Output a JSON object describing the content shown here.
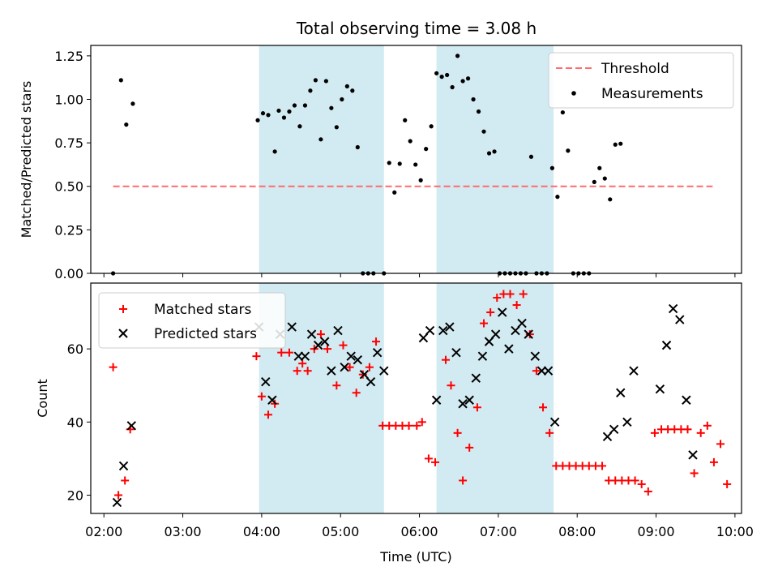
{
  "figure": {
    "title": "Total observing time = 3.08 h"
  },
  "chart_data": [
    {
      "type": "scatter",
      "panel": "top",
      "title": "Total observing time = 3.08 h",
      "ylabel": "Matched/Predicted stars",
      "xlabel": "",
      "xlim": [
        "01:50",
        "10:05"
      ],
      "ylim": [
        0,
        1.31
      ],
      "yticks": [
        "0.00",
        "0.25",
        "0.50",
        "0.75",
        "1.00",
        "1.25"
      ],
      "grid": false,
      "legend": "top-right",
      "shaded_intervals": [
        [
          "03:58",
          "05:33"
        ],
        [
          "06:13",
          "07:42"
        ]
      ],
      "shade_color": "#add8e6",
      "series": [
        {
          "name": "Threshold",
          "kind": "dashed-line",
          "color": "#ff6b6b",
          "y": 0.5,
          "x_range": [
            "02:07",
            "09:43"
          ]
        },
        {
          "name": "Measurements",
          "kind": "points",
          "color": "#000000",
          "points": [
            [
              "02:07",
              0.0
            ],
            [
              "02:13",
              1.11
            ],
            [
              "02:17",
              0.855
            ],
            [
              "02:22",
              0.975
            ],
            [
              "03:57",
              0.88
            ],
            [
              "04:01",
              0.92
            ],
            [
              "04:05",
              0.91
            ],
            [
              "04:10",
              0.7
            ],
            [
              "04:13",
              0.935
            ],
            [
              "04:17",
              0.895
            ],
            [
              "04:21",
              0.93
            ],
            [
              "04:25",
              0.965
            ],
            [
              "04:29",
              0.845
            ],
            [
              "04:33",
              0.965
            ],
            [
              "04:37",
              1.05
            ],
            [
              "04:41",
              1.11
            ],
            [
              "04:45",
              0.77
            ],
            [
              "04:49",
              1.105
            ],
            [
              "04:53",
              0.95
            ],
            [
              "04:57",
              0.84
            ],
            [
              "05:01",
              1.0
            ],
            [
              "05:05",
              1.075
            ],
            [
              "05:09",
              1.05
            ],
            [
              "05:13",
              0.725
            ],
            [
              "05:17",
              0.0
            ],
            [
              "05:21",
              0.0
            ],
            [
              "05:25",
              0.0
            ],
            [
              "05:33",
              0.0
            ],
            [
              "05:37",
              0.635
            ],
            [
              "05:41",
              0.465
            ],
            [
              "05:45",
              0.63
            ],
            [
              "05:49",
              0.88
            ],
            [
              "05:53",
              0.76
            ],
            [
              "05:57",
              0.625
            ],
            [
              "06:01",
              0.535
            ],
            [
              "06:05",
              0.715
            ],
            [
              "06:09",
              0.845
            ],
            [
              "06:13",
              1.15
            ],
            [
              "06:17",
              1.13
            ],
            [
              "06:21",
              1.14
            ],
            [
              "06:25",
              1.07
            ],
            [
              "06:29",
              1.25
            ],
            [
              "06:33",
              1.105
            ],
            [
              "06:37",
              1.12
            ],
            [
              "06:41",
              1.0
            ],
            [
              "06:45",
              0.93
            ],
            [
              "06:49",
              0.815
            ],
            [
              "06:53",
              0.69
            ],
            [
              "06:57",
              0.7
            ],
            [
              "07:01",
              0.0
            ],
            [
              "07:05",
              0.0
            ],
            [
              "07:09",
              0.0
            ],
            [
              "07:13",
              0.0
            ],
            [
              "07:17",
              0.0
            ],
            [
              "07:21",
              0.0
            ],
            [
              "07:25",
              0.67
            ],
            [
              "07:29",
              0.0
            ],
            [
              "07:33",
              0.0
            ],
            [
              "07:37",
              0.0
            ],
            [
              "07:41",
              0.605
            ],
            [
              "07:45",
              0.44
            ],
            [
              "07:49",
              0.925
            ],
            [
              "07:53",
              0.705
            ],
            [
              "07:57",
              0.0
            ],
            [
              "08:01",
              0.0
            ],
            [
              "08:05",
              0.0
            ],
            [
              "08:09",
              0.0
            ],
            [
              "08:13",
              0.525
            ],
            [
              "08:17",
              0.605
            ],
            [
              "08:21",
              0.545
            ],
            [
              "08:25",
              0.425
            ],
            [
              "08:29",
              0.74
            ],
            [
              "08:33",
              0.745
            ]
          ]
        }
      ]
    },
    {
      "type": "scatter",
      "panel": "bottom",
      "ylabel": "Count",
      "xlabel": "Time (UTC)",
      "xlim": [
        "01:50",
        "10:05"
      ],
      "ylim": [
        15,
        78
      ],
      "yticks": [
        "20",
        "40",
        "60"
      ],
      "xticks": [
        "02:00",
        "03:00",
        "04:00",
        "05:00",
        "06:00",
        "07:00",
        "08:00",
        "09:00",
        "10:00"
      ],
      "grid": false,
      "legend": "top-left",
      "shaded_intervals": [
        [
          "03:58",
          "05:33"
        ],
        [
          "06:13",
          "07:42"
        ]
      ],
      "shade_color": "#add8e6",
      "series": [
        {
          "name": "Matched stars",
          "marker": "plus",
          "color": "#ff0000",
          "points": [
            [
              "02:07",
              55
            ],
            [
              "02:11",
              20
            ],
            [
              "02:16",
              24
            ],
            [
              "02:20",
              38
            ],
            [
              "03:56",
              58
            ],
            [
              "04:00",
              47
            ],
            [
              "04:05",
              42
            ],
            [
              "04:10",
              45
            ],
            [
              "04:15",
              59
            ],
            [
              "04:21",
              59
            ],
            [
              "04:27",
              54
            ],
            [
              "04:31",
              56
            ],
            [
              "04:35",
              54
            ],
            [
              "04:40",
              60
            ],
            [
              "04:45",
              64
            ],
            [
              "04:50",
              60
            ],
            [
              "04:57",
              50
            ],
            [
              "05:02",
              61
            ],
            [
              "05:07",
              55
            ],
            [
              "05:12",
              48
            ],
            [
              "05:17",
              53
            ],
            [
              "05:22",
              55
            ],
            [
              "05:27",
              62
            ],
            [
              "05:32",
              39
            ],
            [
              "05:37",
              39
            ],
            [
              "05:42",
              39
            ],
            [
              "05:47",
              39
            ],
            [
              "05:52",
              39
            ],
            [
              "05:58",
              39
            ],
            [
              "06:02",
              40
            ],
            [
              "06:07",
              30
            ],
            [
              "06:12",
              29
            ],
            [
              "06:20",
              57
            ],
            [
              "06:24",
              50
            ],
            [
              "06:29",
              37
            ],
            [
              "06:33",
              24
            ],
            [
              "06:38",
              33
            ],
            [
              "06:44",
              44
            ],
            [
              "06:49",
              67
            ],
            [
              "06:54",
              70
            ],
            [
              "06:59",
              74
            ],
            [
              "07:04",
              75
            ],
            [
              "07:09",
              75
            ],
            [
              "07:14",
              72
            ],
            [
              "07:19",
              75
            ],
            [
              "07:24",
              64
            ],
            [
              "07:29",
              54
            ],
            [
              "07:34",
              44
            ],
            [
              "07:39",
              37
            ],
            [
              "07:44",
              28
            ],
            [
              "07:49",
              28
            ],
            [
              "07:54",
              28
            ],
            [
              "07:59",
              28
            ],
            [
              "08:04",
              28
            ],
            [
              "08:09",
              28
            ],
            [
              "08:14",
              28
            ],
            [
              "08:19",
              28
            ],
            [
              "08:24",
              24
            ],
            [
              "08:29",
              24
            ],
            [
              "08:34",
              24
            ],
            [
              "08:39",
              24
            ],
            [
              "08:44",
              24
            ],
            [
              "08:49",
              23
            ],
            [
              "08:54",
              21
            ],
            [
              "08:59",
              37
            ],
            [
              "09:04",
              38
            ],
            [
              "09:09",
              38
            ],
            [
              "09:14",
              38
            ],
            [
              "09:19",
              38
            ],
            [
              "09:24",
              38
            ],
            [
              "09:29",
              26
            ],
            [
              "09:34",
              37
            ],
            [
              "09:39",
              39
            ],
            [
              "09:44",
              29
            ],
            [
              "09:49",
              34
            ],
            [
              "09:54",
              23
            ]
          ]
        },
        {
          "name": "Predicted stars",
          "marker": "x",
          "color": "#000000",
          "points": [
            [
              "02:10",
              18
            ],
            [
              "02:15",
              28
            ],
            [
              "02:21",
              39
            ],
            [
              "03:58",
              66
            ],
            [
              "04:03",
              51
            ],
            [
              "04:08",
              46
            ],
            [
              "04:14",
              64
            ],
            [
              "04:23",
              66
            ],
            [
              "04:28",
              58
            ],
            [
              "04:33",
              58
            ],
            [
              "04:38",
              64
            ],
            [
              "04:43",
              61
            ],
            [
              "04:48",
              62
            ],
            [
              "04:53",
              54
            ],
            [
              "04:58",
              65
            ],
            [
              "05:03",
              55
            ],
            [
              "05:08",
              58
            ],
            [
              "05:13",
              57
            ],
            [
              "05:18",
              53
            ],
            [
              "05:23",
              51
            ],
            [
              "05:28",
              59
            ],
            [
              "05:33",
              54
            ],
            [
              "06:03",
              63
            ],
            [
              "06:08",
              65
            ],
            [
              "06:13",
              46
            ],
            [
              "06:18",
              65
            ],
            [
              "06:23",
              66
            ],
            [
              "06:28",
              59
            ],
            [
              "06:33",
              45
            ],
            [
              "06:38",
              46
            ],
            [
              "06:43",
              52
            ],
            [
              "06:48",
              58
            ],
            [
              "06:53",
              62
            ],
            [
              "06:58",
              64
            ],
            [
              "07:03",
              70
            ],
            [
              "07:08",
              60
            ],
            [
              "07:13",
              65
            ],
            [
              "07:18",
              67
            ],
            [
              "07:23",
              64
            ],
            [
              "07:28",
              58
            ],
            [
              "07:33",
              54
            ],
            [
              "07:38",
              54
            ],
            [
              "07:43",
              40
            ],
            [
              "08:23",
              36
            ],
            [
              "08:28",
              38
            ],
            [
              "08:33",
              48
            ],
            [
              "08:38",
              40
            ],
            [
              "08:43",
              54
            ],
            [
              "09:03",
              49
            ],
            [
              "09:08",
              61
            ],
            [
              "09:13",
              71
            ],
            [
              "09:18",
              68
            ],
            [
              "09:23",
              46
            ],
            [
              "09:28",
              31
            ]
          ]
        }
      ]
    }
  ]
}
